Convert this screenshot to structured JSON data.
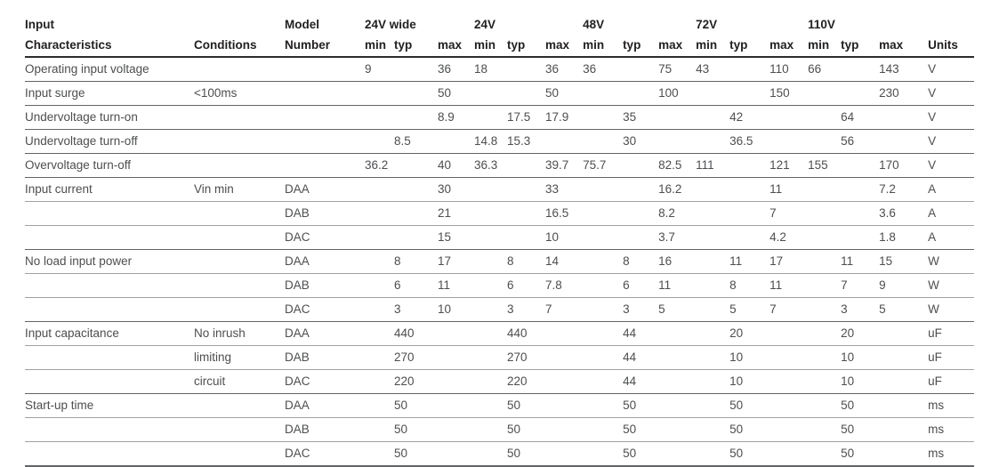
{
  "page": {
    "background": "#ffffff"
  },
  "colors": {
    "header_text": "#232021",
    "body_text": "#4d4e50",
    "rule_heavy": "#2e2b2c",
    "rule_group": "#636466",
    "rule_light": "#a0a1a3"
  },
  "table": {
    "header": {
      "characteristics_line1": "Input",
      "characteristics_line2": "Characteristics",
      "conditions": "Conditions",
      "model_line1": "Model",
      "model_line2": "Number",
      "groups": [
        "24V wide",
        "24V",
        "48V",
        "72V",
        "110V"
      ],
      "sub": [
        "min",
        "typ",
        "max"
      ],
      "units": "Units"
    },
    "rows": [
      {
        "characteristic": "Operating input voltage",
        "condition": "",
        "model": "",
        "group_start": true,
        "values": [
          [
            "9",
            "",
            "36"
          ],
          [
            "18",
            "",
            "36"
          ],
          [
            "36",
            "",
            "75"
          ],
          [
            "43",
            "",
            "110"
          ],
          [
            "66",
            "",
            "143"
          ]
        ],
        "units": "V"
      },
      {
        "characteristic": "Input surge",
        "condition": "<100ms",
        "model": "",
        "group_start": true,
        "values": [
          [
            "",
            "",
            "50"
          ],
          [
            "",
            "",
            "50"
          ],
          [
            "",
            "",
            "100"
          ],
          [
            "",
            "",
            "150"
          ],
          [
            "",
            "",
            "230"
          ]
        ],
        "units": "V"
      },
      {
        "characteristic": "Undervoltage turn-on",
        "condition": "",
        "model": "",
        "group_start": true,
        "values": [
          [
            "",
            "",
            "8.9"
          ],
          [
            "",
            "17.5",
            "17.9"
          ],
          [
            "",
            "35",
            ""
          ],
          [
            "",
            "42",
            ""
          ],
          [
            "",
            "64",
            ""
          ]
        ],
        "units": "V"
      },
      {
        "characteristic": "Undervoltage turn-off",
        "condition": "",
        "model": "",
        "group_start": true,
        "values": [
          [
            "",
            "8.5",
            ""
          ],
          [
            "14.8",
            "15.3",
            ""
          ],
          [
            "",
            "30",
            ""
          ],
          [
            "",
            "36.5",
            ""
          ],
          [
            "",
            "56",
            ""
          ]
        ],
        "units": "V"
      },
      {
        "characteristic": "Overvoltage turn-off",
        "condition": "",
        "model": "",
        "group_start": true,
        "values": [
          [
            "36.2",
            "",
            "40"
          ],
          [
            "36.3",
            "",
            "39.7"
          ],
          [
            "75.7",
            "",
            "82.5"
          ],
          [
            "111",
            "",
            "121"
          ],
          [
            "155",
            "",
            "170"
          ]
        ],
        "units": "V"
      },
      {
        "characteristic": "Input current",
        "condition": "Vin min",
        "model": "DAA",
        "group_start": true,
        "values": [
          [
            "",
            "",
            "30"
          ],
          [
            "",
            "",
            "33"
          ],
          [
            "",
            "",
            "16.2"
          ],
          [
            "",
            "",
            "11"
          ],
          [
            "",
            "",
            "7.2"
          ]
        ],
        "units": "A"
      },
      {
        "characteristic": "",
        "condition": "",
        "model": "DAB",
        "group_start": false,
        "values": [
          [
            "",
            "",
            "21"
          ],
          [
            "",
            "",
            "16.5"
          ],
          [
            "",
            "",
            "8.2"
          ],
          [
            "",
            "",
            "7"
          ],
          [
            "",
            "",
            "3.6"
          ]
        ],
        "units": "A"
      },
      {
        "characteristic": "",
        "condition": "",
        "model": "DAC",
        "group_start": false,
        "values": [
          [
            "",
            "",
            "15"
          ],
          [
            "",
            "",
            "10"
          ],
          [
            "",
            "",
            "3.7"
          ],
          [
            "",
            "",
            "4.2"
          ],
          [
            "",
            "",
            "1.8"
          ]
        ],
        "units": "A"
      },
      {
        "characteristic": "No load input power",
        "condition": "",
        "model": "DAA",
        "group_start": true,
        "values": [
          [
            "",
            "8",
            "17"
          ],
          [
            "",
            "8",
            "14"
          ],
          [
            "",
            "8",
            "16"
          ],
          [
            "",
            "11",
            "17"
          ],
          [
            "",
            "11",
            "15"
          ]
        ],
        "units": "W"
      },
      {
        "characteristic": "",
        "condition": "",
        "model": "DAB",
        "group_start": false,
        "values": [
          [
            "",
            "6",
            "11"
          ],
          [
            "",
            "6",
            "7.8"
          ],
          [
            "",
            "6",
            "11"
          ],
          [
            "",
            "8",
            "11"
          ],
          [
            "",
            "7",
            "9"
          ]
        ],
        "units": "W"
      },
      {
        "characteristic": "",
        "condition": "",
        "model": "DAC",
        "group_start": false,
        "values": [
          [
            "",
            "3",
            "10"
          ],
          [
            "",
            "3",
            "7"
          ],
          [
            "",
            "3",
            "5"
          ],
          [
            "",
            "5",
            "7"
          ],
          [
            "",
            "3",
            "5"
          ]
        ],
        "units": "W"
      },
      {
        "characteristic": "Input capacitance",
        "condition": "No inrush",
        "model": "DAA",
        "group_start": true,
        "values": [
          [
            "",
            "440",
            ""
          ],
          [
            "",
            "440",
            ""
          ],
          [
            "",
            "44",
            ""
          ],
          [
            "",
            "20",
            ""
          ],
          [
            "",
            "20",
            ""
          ]
        ],
        "units": "uF"
      },
      {
        "characteristic": "",
        "condition": "limiting",
        "model": "DAB",
        "group_start": false,
        "values": [
          [
            "",
            "270",
            ""
          ],
          [
            "",
            "270",
            ""
          ],
          [
            "",
            "44",
            ""
          ],
          [
            "",
            "10",
            ""
          ],
          [
            "",
            "10",
            ""
          ]
        ],
        "units": "uF"
      },
      {
        "characteristic": "",
        "condition": "circuit",
        "model": "DAC",
        "group_start": false,
        "values": [
          [
            "",
            "220",
            ""
          ],
          [
            "",
            "220",
            ""
          ],
          [
            "",
            "44",
            ""
          ],
          [
            "",
            "10",
            ""
          ],
          [
            "",
            "10",
            ""
          ]
        ],
        "units": "uF"
      },
      {
        "characteristic": "Start-up time",
        "condition": "",
        "model": "DAA",
        "group_start": true,
        "values": [
          [
            "",
            "50",
            ""
          ],
          [
            "",
            "50",
            ""
          ],
          [
            "",
            "50",
            ""
          ],
          [
            "",
            "50",
            ""
          ],
          [
            "",
            "50",
            ""
          ]
        ],
        "units": "ms"
      },
      {
        "characteristic": "",
        "condition": "",
        "model": "DAB",
        "group_start": false,
        "values": [
          [
            "",
            "50",
            ""
          ],
          [
            "",
            "50",
            ""
          ],
          [
            "",
            "50",
            ""
          ],
          [
            "",
            "50",
            ""
          ],
          [
            "",
            "50",
            ""
          ]
        ],
        "units": "ms"
      },
      {
        "characteristic": "",
        "condition": "",
        "model": "DAC",
        "group_start": false,
        "values": [
          [
            "",
            "50",
            ""
          ],
          [
            "",
            "50",
            ""
          ],
          [
            "",
            "50",
            ""
          ],
          [
            "",
            "50",
            ""
          ],
          [
            "",
            "50",
            ""
          ]
        ],
        "units": "ms"
      }
    ]
  }
}
